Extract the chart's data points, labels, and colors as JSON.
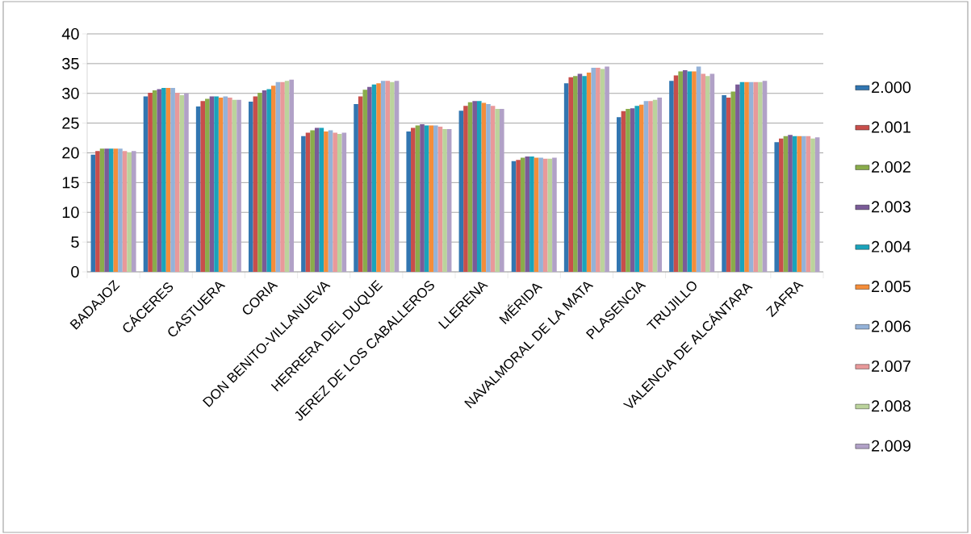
{
  "chart_data": {
    "type": "bar",
    "categories": [
      "BADAJOZ",
      "CÁCERES",
      "CASTUERA",
      "CORIA",
      "DON BENITO-VILLANUEVA",
      "HERRERA DEL DUQUE",
      "JEREZ DE LOS CABALLEROS",
      "LLERENA",
      "MÉRIDA",
      "NAVALMORAL DE LA MATA",
      "PLASENCIA",
      "TRUJILLO",
      "VALENCIA DE ALCÁNTARA",
      "ZAFRA"
    ],
    "series": [
      {
        "name": "2.000",
        "color": "#3276b1",
        "values": [
          19.7,
          29.5,
          27.8,
          28.6,
          22.8,
          28.2,
          23.6,
          27.1,
          18.6,
          31.7,
          26.0,
          32.1,
          29.7,
          21.8
        ]
      },
      {
        "name": "2.001",
        "color": "#c84e4b",
        "values": [
          20.3,
          30.1,
          28.7,
          29.5,
          23.4,
          29.5,
          24.2,
          27.9,
          18.8,
          32.7,
          27.0,
          33.0,
          29.3,
          22.4
        ]
      },
      {
        "name": "2.002",
        "color": "#8aac4b",
        "values": [
          20.7,
          30.5,
          29.1,
          30.1,
          23.8,
          30.6,
          24.6,
          28.5,
          19.2,
          32.9,
          27.4,
          33.7,
          30.3,
          22.8
        ]
      },
      {
        "name": "2.003",
        "color": "#7a5b98",
        "values": [
          20.7,
          30.7,
          29.5,
          30.5,
          24.2,
          31.1,
          24.8,
          28.7,
          19.4,
          33.3,
          27.5,
          33.9,
          31.5,
          23.0
        ]
      },
      {
        "name": "2.004",
        "color": "#1aa3bb",
        "values": [
          20.7,
          30.9,
          29.5,
          30.7,
          24.2,
          31.5,
          24.6,
          28.7,
          19.4,
          32.9,
          27.9,
          33.7,
          31.9,
          22.8
        ]
      },
      {
        "name": "2.005",
        "color": "#f48d3a",
        "values": [
          20.7,
          30.9,
          29.3,
          31.3,
          23.6,
          31.7,
          24.6,
          28.4,
          19.2,
          33.5,
          28.1,
          33.7,
          31.9,
          22.8
        ]
      },
      {
        "name": "2.006",
        "color": "#94b2d8",
        "values": [
          20.7,
          30.9,
          29.5,
          31.9,
          23.8,
          32.1,
          24.6,
          28.2,
          19.2,
          34.3,
          28.7,
          34.5,
          31.9,
          22.8
        ]
      },
      {
        "name": "2.007",
        "color": "#e8999a",
        "values": [
          20.3,
          30.1,
          29.3,
          31.9,
          23.4,
          32.1,
          24.4,
          27.9,
          19.0,
          34.3,
          28.7,
          33.3,
          31.9,
          22.8
        ]
      },
      {
        "name": "2.008",
        "color": "#bbd39c",
        "values": [
          20.1,
          29.7,
          28.9,
          32.1,
          23.2,
          31.9,
          24.0,
          27.4,
          19.0,
          34.1,
          28.9,
          32.9,
          31.9,
          22.4
        ]
      },
      {
        "name": "2.009",
        "color": "#b1a1c7",
        "values": [
          20.3,
          30.0,
          28.9,
          32.3,
          23.4,
          32.1,
          24.0,
          27.4,
          19.2,
          34.5,
          29.3,
          33.3,
          32.1,
          22.6
        ]
      }
    ],
    "ylim": [
      0,
      40
    ],
    "yticks": [
      0,
      5,
      10,
      15,
      20,
      25,
      30,
      35,
      40
    ],
    "grid": "y",
    "legend": "right"
  }
}
